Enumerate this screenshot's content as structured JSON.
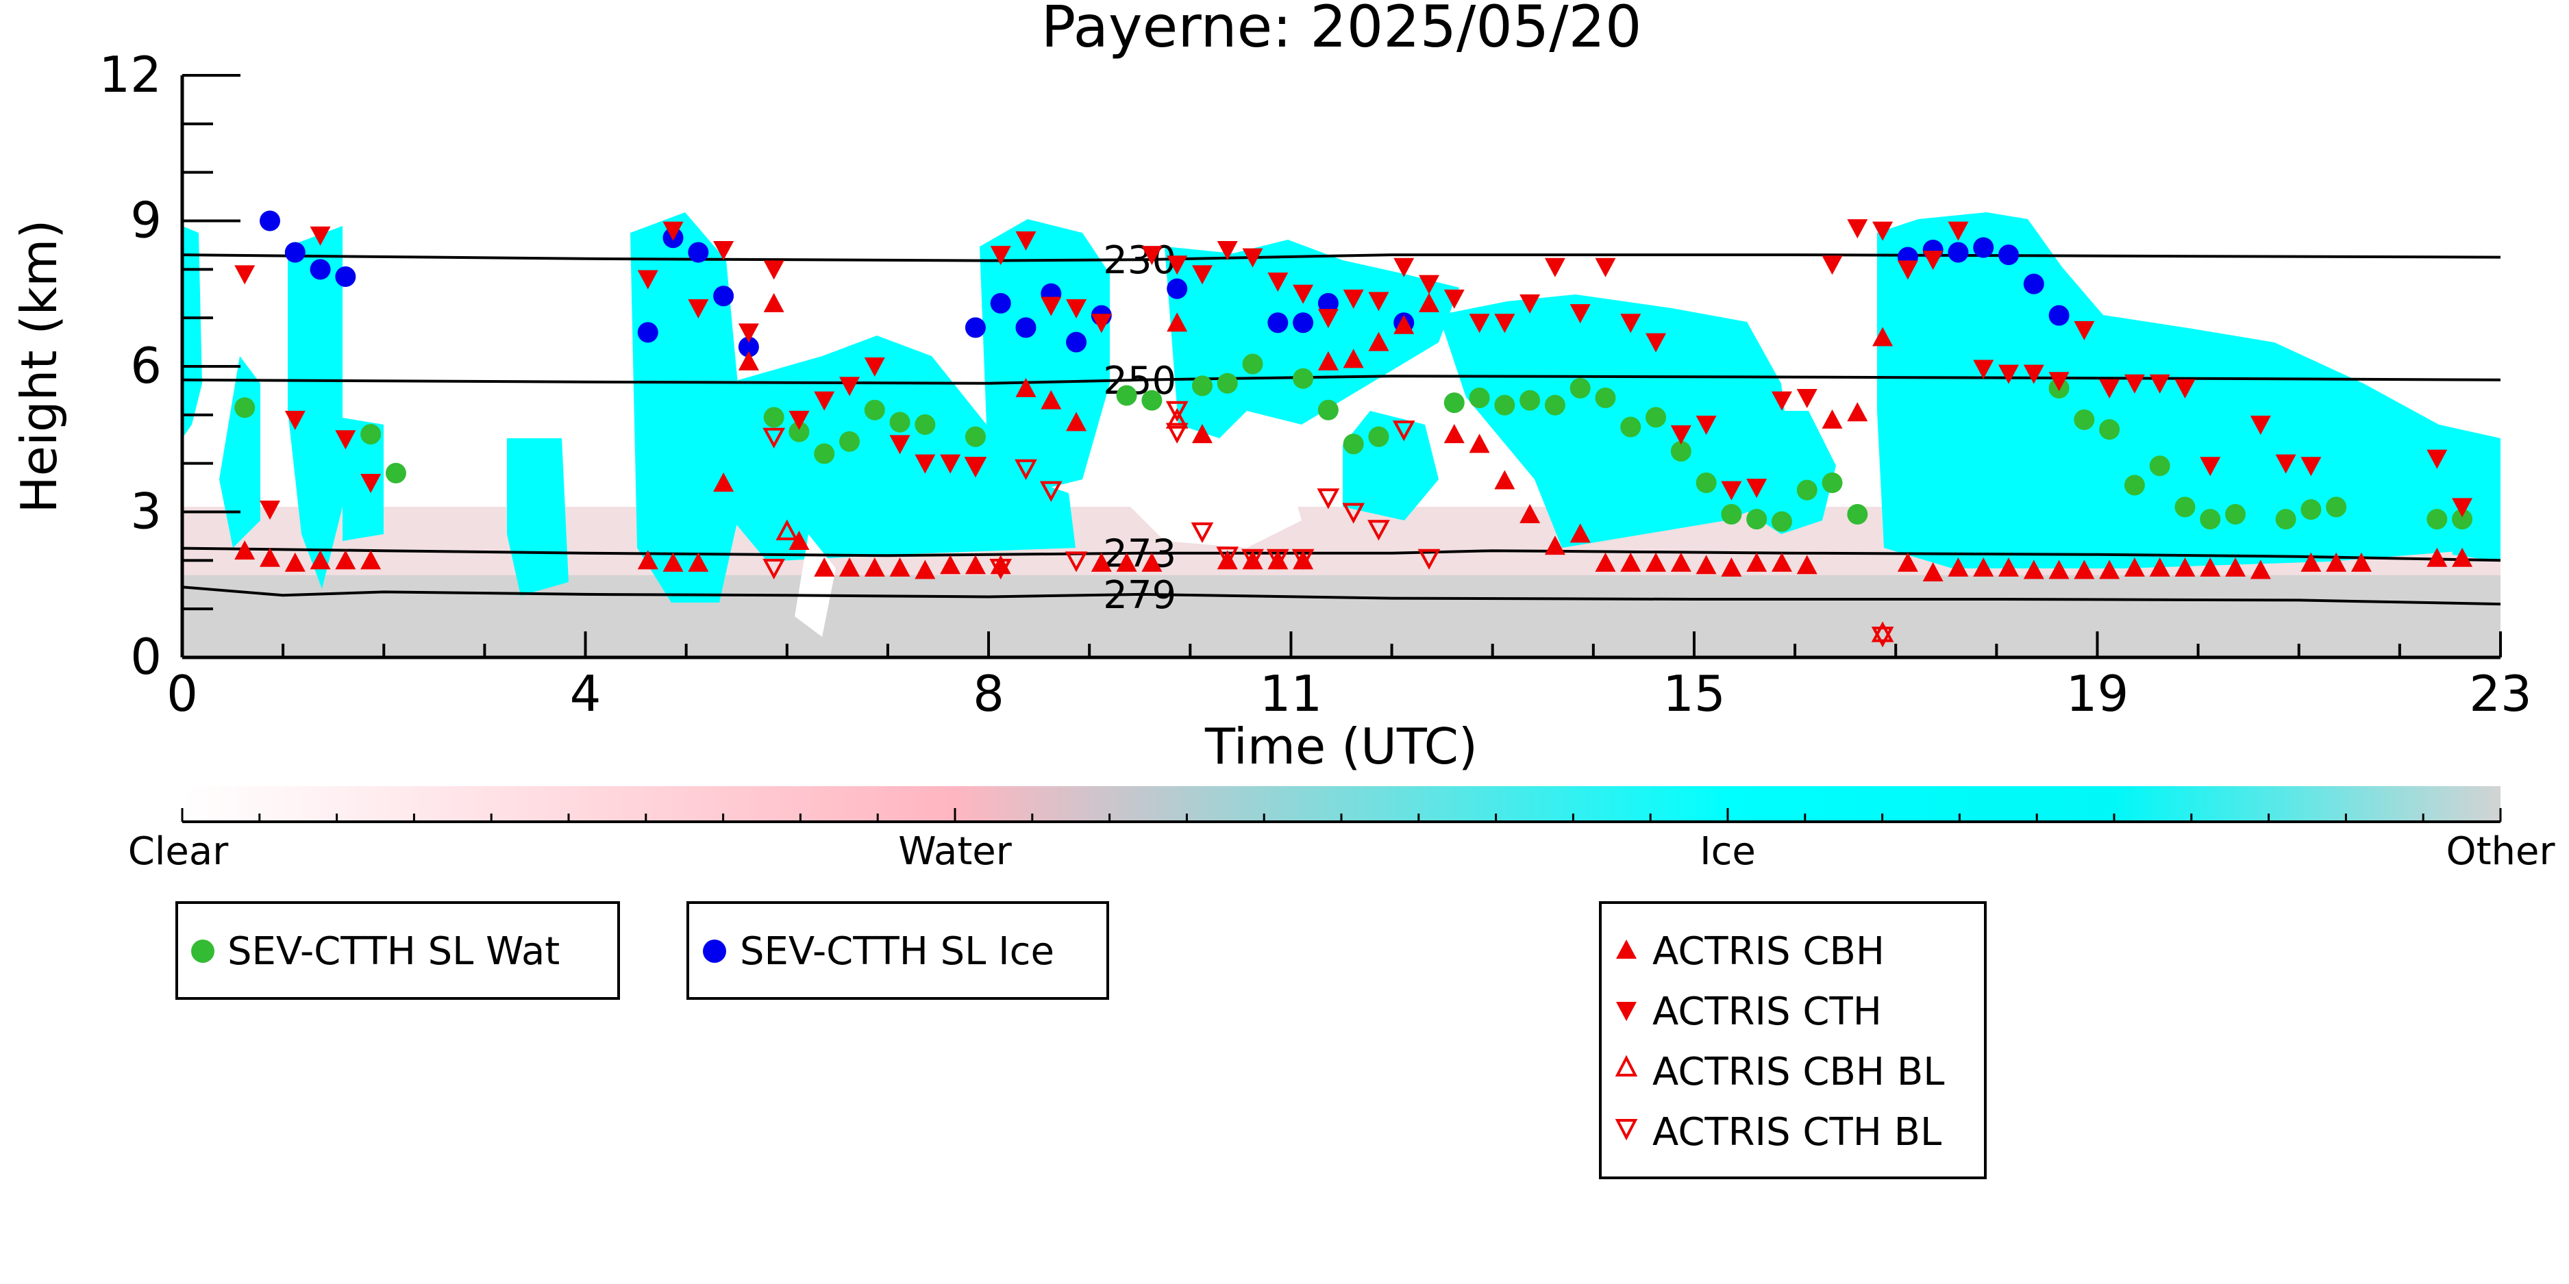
{
  "chart_data": {
    "type": "scatter",
    "title": "Payerne: 2025/05/20",
    "xlabel": "Time (UTC)",
    "ylabel": "Height (km)",
    "xlim": [
      0,
      23
    ],
    "ylim": [
      0,
      12
    ],
    "xticks": [
      0,
      4,
      8,
      11,
      15,
      19,
      23
    ],
    "yticks": [
      0,
      3,
      6,
      9,
      12
    ],
    "colors": {
      "clear": "#ffffff",
      "water": "#ffb6c1",
      "ice": "#00ffff",
      "other": "#d3d3d3",
      "sev_wat": "#33bb33",
      "sev_ice": "#0000ee",
      "actris": "#ee0000"
    },
    "colorbar": {
      "labels": [
        "Clear",
        "Water",
        "Ice",
        "Other"
      ]
    },
    "legend": {
      "sev_wat": "SEV-CTTH SL Wat",
      "sev_ice": "SEV-CTTH SL Ice",
      "cbh": "ACTRIS CBH",
      "cth": "ACTRIS CTH",
      "cbh_bl": "ACTRIS CBH BL",
      "cth_bl": "ACTRIS CTH BL"
    },
    "isotherms": [
      {
        "label": "230",
        "points": [
          [
            0,
            8.3
          ],
          [
            4,
            8.22
          ],
          [
            8,
            8.18
          ],
          [
            9.5,
            8.2
          ],
          [
            12,
            8.3
          ],
          [
            16,
            8.3
          ],
          [
            20,
            8.27
          ],
          [
            23,
            8.25
          ]
        ]
      },
      {
        "label": "250",
        "points": [
          [
            0,
            5.72
          ],
          [
            4,
            5.68
          ],
          [
            8,
            5.65
          ],
          [
            9.5,
            5.72
          ],
          [
            12,
            5.8
          ],
          [
            16,
            5.78
          ],
          [
            20,
            5.75
          ],
          [
            23,
            5.72
          ]
        ]
      },
      {
        "label": "273",
        "points": [
          [
            0,
            2.25
          ],
          [
            2,
            2.2
          ],
          [
            4,
            2.15
          ],
          [
            7,
            2.1
          ],
          [
            9.5,
            2.15
          ],
          [
            12,
            2.15
          ],
          [
            13,
            2.2
          ],
          [
            16,
            2.15
          ],
          [
            19,
            2.12
          ],
          [
            21,
            2.08
          ],
          [
            23,
            2.0
          ]
        ]
      },
      {
        "label": "279",
        "points": [
          [
            0,
            1.45
          ],
          [
            1,
            1.28
          ],
          [
            2,
            1.35
          ],
          [
            4,
            1.3
          ],
          [
            6,
            1.28
          ],
          [
            8,
            1.25
          ],
          [
            9.5,
            1.3
          ],
          [
            12,
            1.22
          ],
          [
            15,
            1.2
          ],
          [
            18,
            1.2
          ],
          [
            21,
            1.18
          ],
          [
            23,
            1.1
          ]
        ]
      }
    ],
    "series": [
      {
        "name": "SEV-CTTH SL Wat",
        "points": [
          [
            0.62,
            5.15
          ],
          [
            1.87,
            4.6
          ],
          [
            2.12,
            3.8
          ],
          [
            5.87,
            4.95
          ],
          [
            6.12,
            4.65
          ],
          [
            6.37,
            4.2
          ],
          [
            6.62,
            4.45
          ],
          [
            6.87,
            5.1
          ],
          [
            7.12,
            4.85
          ],
          [
            7.37,
            4.8
          ],
          [
            7.87,
            4.55
          ],
          [
            9.37,
            5.4
          ],
          [
            9.62,
            5.3
          ],
          [
            10.12,
            5.6
          ],
          [
            10.37,
            5.65
          ],
          [
            10.62,
            6.05
          ],
          [
            11.12,
            5.75
          ],
          [
            11.37,
            5.1
          ],
          [
            11.62,
            4.4
          ],
          [
            11.87,
            4.55
          ],
          [
            12.62,
            5.25
          ],
          [
            12.87,
            5.35
          ],
          [
            13.12,
            5.2
          ],
          [
            13.37,
            5.3
          ],
          [
            13.62,
            5.2
          ],
          [
            13.87,
            5.55
          ],
          [
            14.12,
            5.35
          ],
          [
            14.37,
            4.75
          ],
          [
            14.62,
            4.95
          ],
          [
            14.87,
            4.25
          ],
          [
            15.12,
            3.6
          ],
          [
            15.37,
            2.95
          ],
          [
            15.62,
            2.85
          ],
          [
            15.87,
            2.8
          ],
          [
            16.12,
            3.45
          ],
          [
            16.37,
            3.6
          ],
          [
            16.62,
            2.95
          ],
          [
            18.62,
            5.55
          ],
          [
            18.87,
            4.9
          ],
          [
            19.12,
            4.7
          ],
          [
            19.37,
            3.55
          ],
          [
            19.62,
            3.95
          ],
          [
            19.87,
            3.1
          ],
          [
            20.12,
            2.85
          ],
          [
            20.37,
            2.95
          ],
          [
            20.87,
            2.85
          ],
          [
            21.12,
            3.05
          ],
          [
            21.37,
            3.1
          ],
          [
            22.37,
            2.85
          ],
          [
            22.62,
            2.85
          ]
        ]
      },
      {
        "name": "SEV-CTTH SL Ice",
        "points": [
          [
            0.87,
            9.0
          ],
          [
            1.12,
            8.35
          ],
          [
            1.37,
            8.0
          ],
          [
            1.62,
            7.85
          ],
          [
            4.62,
            6.7
          ],
          [
            4.87,
            8.65
          ],
          [
            5.12,
            8.35
          ],
          [
            5.37,
            7.45
          ],
          [
            5.62,
            6.4
          ],
          [
            7.87,
            6.8
          ],
          [
            8.12,
            7.3
          ],
          [
            8.37,
            6.8
          ],
          [
            8.62,
            7.5
          ],
          [
            8.87,
            6.5
          ],
          [
            9.12,
            7.05
          ],
          [
            9.87,
            7.6
          ],
          [
            10.87,
            6.9
          ],
          [
            11.12,
            6.9
          ],
          [
            11.37,
            7.3
          ],
          [
            12.12,
            6.9
          ],
          [
            17.12,
            8.25
          ],
          [
            17.37,
            8.4
          ],
          [
            17.62,
            8.35
          ],
          [
            17.87,
            8.45
          ],
          [
            18.12,
            8.3
          ],
          [
            18.37,
            7.7
          ],
          [
            18.62,
            7.05
          ]
        ]
      },
      {
        "name": "ACTRIS CBH",
        "points": [
          [
            0.62,
            2.2
          ],
          [
            0.87,
            2.05
          ],
          [
            1.12,
            1.95
          ],
          [
            1.37,
            2.0
          ],
          [
            1.62,
            2.0
          ],
          [
            1.87,
            2.0
          ],
          [
            4.62,
            2.0
          ],
          [
            4.87,
            1.95
          ],
          [
            5.12,
            1.95
          ],
          [
            5.37,
            3.6
          ],
          [
            5.62,
            6.1
          ],
          [
            5.87,
            7.3
          ],
          [
            6.12,
            2.4
          ],
          [
            6.37,
            1.85
          ],
          [
            6.62,
            1.85
          ],
          [
            6.87,
            1.85
          ],
          [
            7.12,
            1.85
          ],
          [
            7.37,
            1.8
          ],
          [
            7.62,
            1.9
          ],
          [
            7.87,
            1.9
          ],
          [
            8.12,
            1.9
          ],
          [
            8.37,
            5.55
          ],
          [
            8.62,
            5.3
          ],
          [
            8.87,
            4.85
          ],
          [
            9.12,
            1.95
          ],
          [
            9.37,
            1.95
          ],
          [
            9.62,
            1.95
          ],
          [
            9.87,
            6.9
          ],
          [
            10.12,
            4.6
          ],
          [
            10.37,
            2.0
          ],
          [
            10.62,
            2.0
          ],
          [
            10.87,
            2.0
          ],
          [
            11.12,
            2.0
          ],
          [
            11.37,
            6.1
          ],
          [
            11.62,
            6.15
          ],
          [
            11.87,
            6.5
          ],
          [
            12.12,
            6.85
          ],
          [
            12.37,
            7.3
          ],
          [
            12.62,
            4.6
          ],
          [
            12.87,
            4.4
          ],
          [
            13.12,
            3.65
          ],
          [
            13.37,
            2.95
          ],
          [
            13.62,
            2.3
          ],
          [
            13.87,
            2.55
          ],
          [
            14.12,
            1.95
          ],
          [
            14.37,
            1.95
          ],
          [
            14.62,
            1.95
          ],
          [
            14.87,
            1.95
          ],
          [
            15.12,
            1.9
          ],
          [
            15.37,
            1.85
          ],
          [
            15.62,
            1.95
          ],
          [
            15.87,
            1.95
          ],
          [
            16.12,
            1.9
          ],
          [
            16.37,
            4.9
          ],
          [
            16.62,
            5.05
          ],
          [
            16.87,
            6.6
          ],
          [
            17.12,
            1.95
          ],
          [
            17.37,
            1.75
          ],
          [
            17.62,
            1.85
          ],
          [
            17.87,
            1.85
          ],
          [
            18.12,
            1.85
          ],
          [
            18.37,
            1.8
          ],
          [
            18.62,
            1.8
          ],
          [
            18.87,
            1.8
          ],
          [
            19.12,
            1.8
          ],
          [
            19.37,
            1.85
          ],
          [
            19.62,
            1.85
          ],
          [
            19.87,
            1.85
          ],
          [
            20.12,
            1.85
          ],
          [
            20.37,
            1.85
          ],
          [
            20.62,
            1.8
          ],
          [
            21.12,
            1.95
          ],
          [
            21.37,
            1.95
          ],
          [
            21.62,
            1.95
          ],
          [
            22.37,
            2.05
          ],
          [
            22.62,
            2.05
          ]
        ]
      },
      {
        "name": "ACTRIS CTH",
        "points": [
          [
            0.62,
            7.9
          ],
          [
            0.87,
            3.05
          ],
          [
            1.12,
            4.9
          ],
          [
            1.37,
            8.7
          ],
          [
            1.62,
            4.5
          ],
          [
            1.87,
            3.6
          ],
          [
            4.62,
            7.8
          ],
          [
            4.87,
            8.8
          ],
          [
            5.12,
            7.2
          ],
          [
            5.37,
            8.4
          ],
          [
            5.62,
            6.7
          ],
          [
            5.87,
            8.0
          ],
          [
            6.12,
            4.9
          ],
          [
            6.37,
            5.3
          ],
          [
            6.62,
            5.6
          ],
          [
            6.87,
            6.0
          ],
          [
            7.12,
            4.4
          ],
          [
            7.37,
            4.0
          ],
          [
            7.62,
            4.0
          ],
          [
            7.87,
            3.95
          ],
          [
            8.12,
            8.3
          ],
          [
            8.37,
            8.6
          ],
          [
            8.62,
            7.25
          ],
          [
            8.87,
            7.2
          ],
          [
            9.12,
            6.9
          ],
          [
            9.62,
            8.3
          ],
          [
            9.87,
            8.1
          ],
          [
            10.12,
            7.9
          ],
          [
            10.37,
            8.4
          ],
          [
            10.62,
            8.25
          ],
          [
            10.87,
            7.75
          ],
          [
            11.12,
            7.5
          ],
          [
            11.37,
            7.0
          ],
          [
            11.62,
            7.4
          ],
          [
            11.87,
            7.35
          ],
          [
            12.12,
            8.05
          ],
          [
            12.37,
            7.7
          ],
          [
            12.62,
            7.4
          ],
          [
            12.87,
            6.9
          ],
          [
            13.12,
            6.9
          ],
          [
            13.37,
            7.3
          ],
          [
            13.62,
            8.05
          ],
          [
            13.87,
            7.1
          ],
          [
            14.12,
            8.05
          ],
          [
            14.37,
            6.9
          ],
          [
            14.62,
            6.5
          ],
          [
            14.87,
            4.6
          ],
          [
            15.12,
            4.8
          ],
          [
            15.37,
            3.45
          ],
          [
            15.62,
            3.5
          ],
          [
            15.87,
            5.3
          ],
          [
            16.12,
            5.35
          ],
          [
            16.37,
            8.1
          ],
          [
            16.62,
            8.85
          ],
          [
            16.87,
            8.8
          ],
          [
            17.12,
            8.0
          ],
          [
            17.37,
            8.2
          ],
          [
            17.62,
            8.8
          ],
          [
            17.87,
            5.95
          ],
          [
            18.12,
            5.85
          ],
          [
            18.37,
            5.85
          ],
          [
            18.62,
            5.7
          ],
          [
            18.87,
            6.75
          ],
          [
            19.12,
            5.55
          ],
          [
            19.37,
            5.65
          ],
          [
            19.62,
            5.65
          ],
          [
            19.87,
            5.55
          ],
          [
            20.12,
            3.95
          ],
          [
            20.62,
            4.8
          ],
          [
            20.87,
            4.0
          ],
          [
            21.12,
            3.95
          ],
          [
            22.37,
            4.1
          ],
          [
            22.62,
            3.1
          ]
        ]
      },
      {
        "name": "ACTRIS CBH BL",
        "points": [
          [
            6.0,
            2.6
          ],
          [
            9.87,
            4.9
          ],
          [
            16.87,
            0.5
          ]
        ]
      },
      {
        "name": "ACTRIS CTH BL",
        "points": [
          [
            5.87,
            4.55
          ],
          [
            5.87,
            1.85
          ],
          [
            7.87,
            3.95
          ],
          [
            8.12,
            1.85
          ],
          [
            8.37,
            3.9
          ],
          [
            8.62,
            3.45
          ],
          [
            8.87,
            2.0
          ],
          [
            9.87,
            5.1
          ],
          [
            9.87,
            4.65
          ],
          [
            10.12,
            2.6
          ],
          [
            10.37,
            2.1
          ],
          [
            10.62,
            2.05
          ],
          [
            10.87,
            2.05
          ],
          [
            11.12,
            2.05
          ],
          [
            11.37,
            3.3
          ],
          [
            11.62,
            3.0
          ],
          [
            11.87,
            2.65
          ],
          [
            12.12,
            4.7
          ],
          [
            12.37,
            2.05
          ],
          [
            16.87,
            0.45
          ]
        ]
      }
    ]
  }
}
